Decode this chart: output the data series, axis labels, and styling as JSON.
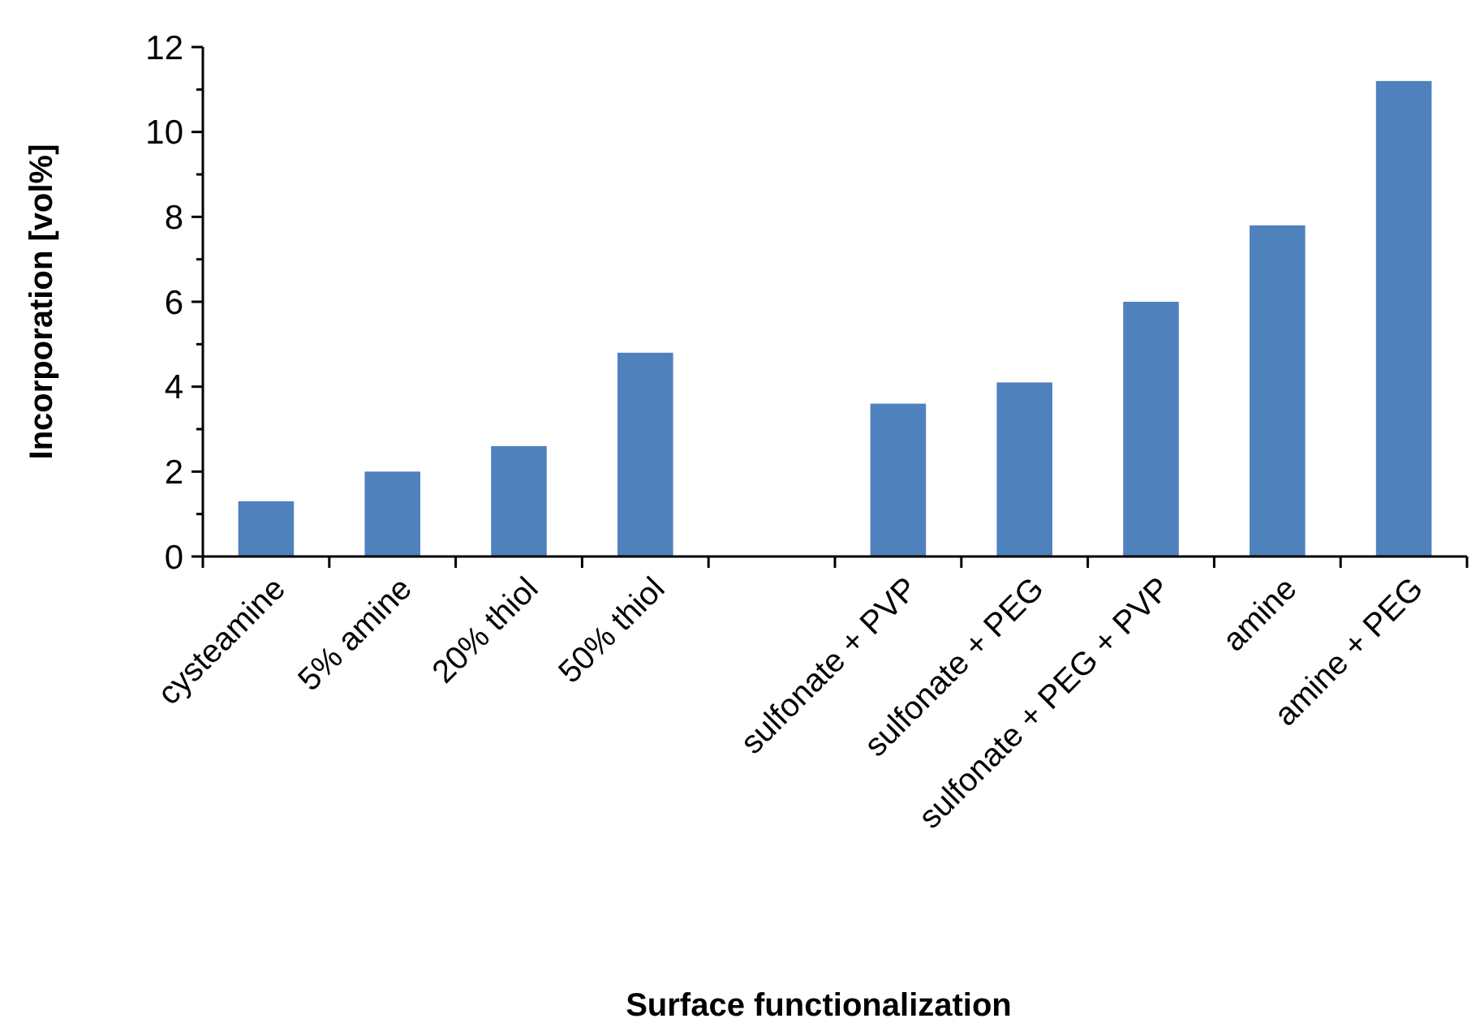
{
  "chart_data": {
    "type": "bar",
    "xlabel": "Surface functionalization",
    "ylabel": "Incorporation [vol%]",
    "categories": [
      "cysteamine",
      "5% amine",
      "20% thiol",
      "50% thiol",
      null,
      "sulfonate + PVP",
      "sulfonate + PEG",
      "sulfonate + PEG + PVP",
      "amine",
      "amine + PEG"
    ],
    "values": [
      1.3,
      2.0,
      2.6,
      4.8,
      null,
      3.6,
      4.1,
      6.0,
      7.8,
      11.2
    ],
    "color": "#4f81bd",
    "ylim": [
      0,
      12
    ],
    "yticks": [
      0,
      {
        "value": 1,
        "label": null
      },
      2,
      {
        "value": 3,
        "label": null
      },
      4,
      {
        "value": 5,
        "label": null
      },
      6,
      {
        "value": 7,
        "label": null
      },
      8,
      {
        "value": 9,
        "label": null
      },
      10,
      {
        "value": 11,
        "label": null
      },
      12
    ]
  }
}
